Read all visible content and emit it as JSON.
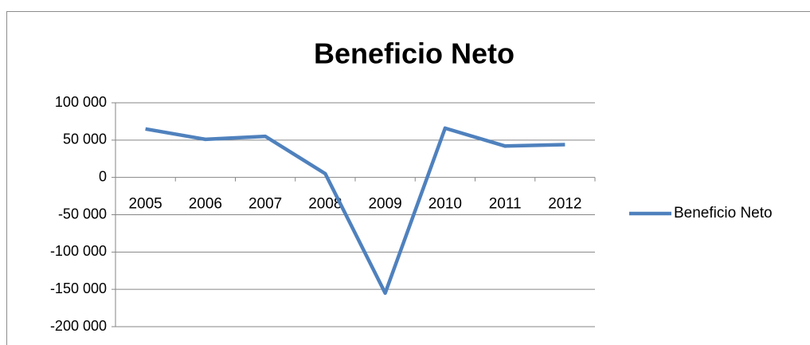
{
  "chart_data": {
    "type": "line",
    "title": "Beneficio Neto",
    "categories": [
      "2005",
      "2006",
      "2007",
      "2008",
      "2009",
      "2010",
      "2011",
      "2012"
    ],
    "series": [
      {
        "name": "Beneficio Neto",
        "color": "#4f81bd",
        "values": [
          65000,
          51000,
          55000,
          5000,
          -155000,
          66000,
          42000,
          44000
        ]
      }
    ],
    "ylim": [
      -200000,
      100000
    ],
    "yticks": [
      {
        "value": -200000,
        "label": "-200 000"
      },
      {
        "value": -150000,
        "label": "-150 000"
      },
      {
        "value": -100000,
        "label": "-100 000"
      },
      {
        "value": -50000,
        "label": "-50 000"
      },
      0,
      {
        "value": 50000,
        "label": "50 000"
      },
      {
        "value": 100000,
        "label": "100 000"
      }
    ],
    "grid": true,
    "legend": "right"
  }
}
